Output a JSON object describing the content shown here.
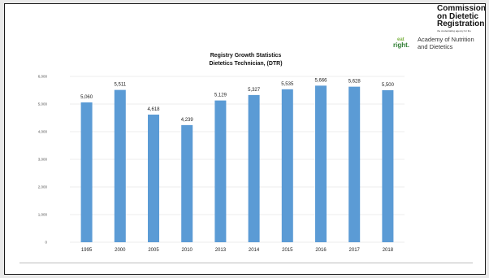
{
  "logo": {
    "title_lines": [
      "Commission",
      "on Dietetic",
      "Registration"
    ],
    "tagline": "the credentialing agency for the",
    "mark_top": "eat",
    "mark_bottom": "right.",
    "org_lines": [
      "Academy of Nutrition",
      "and Dietetics"
    ]
  },
  "chart_data": {
    "type": "bar",
    "title": "Registry Growth Statistics",
    "subtitle": "Dietetics Technician,  (DTR)",
    "categories": [
      "1995",
      "2000",
      "2005",
      "2010",
      "2013",
      "2014",
      "2015",
      "2016",
      "2017",
      "2018"
    ],
    "values": [
      5060,
      5511,
      4618,
      4239,
      5129,
      5327,
      5535,
      5666,
      5628,
      5500
    ],
    "value_labels": [
      "5,060",
      "5,511",
      "4,618",
      "4,239",
      "5,129",
      "5,327",
      "5,535",
      "5,666",
      "5,628",
      "5,500"
    ],
    "yticks": [
      0,
      1000,
      2000,
      3000,
      4000,
      5000,
      6000
    ],
    "ytick_labels": [
      "0",
      "1,000",
      "2,000",
      "3,000",
      "4,000",
      "5,000",
      "6,000"
    ],
    "ylim": [
      0,
      6000
    ],
    "grid": true,
    "bar_color": "#5b9bd5",
    "grid_color": "#d9d9d9"
  }
}
